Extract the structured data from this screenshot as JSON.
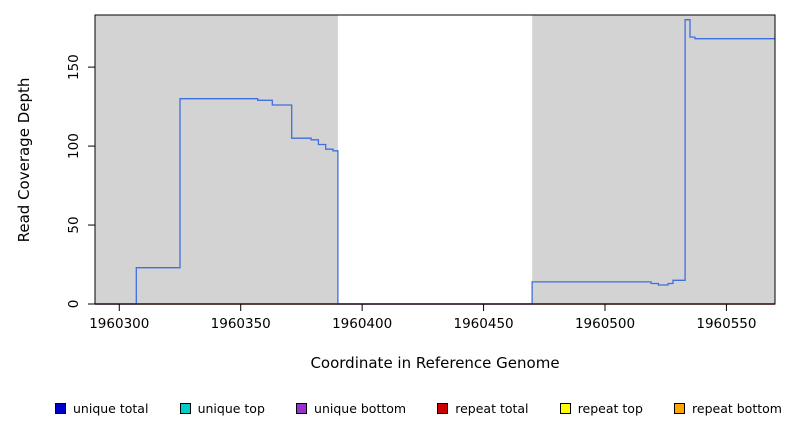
{
  "chart_data": {
    "type": "line",
    "step": true,
    "title": "",
    "xlabel": "Coordinate in Reference Genome",
    "ylabel": "Read Coverage Depth",
    "xlim": [
      1960290,
      1960570
    ],
    "ylim": [
      0,
      183
    ],
    "x_ticks": [
      1960300,
      1960350,
      1960400,
      1960450,
      1960500,
      1960550
    ],
    "y_ticks": [
      0,
      50,
      100,
      150
    ],
    "grid": false,
    "plot_bg": "#FFFFFF",
    "plot_bg_shaded": "#D3D3D3",
    "border_color": "#000000",
    "shaded_regions": [
      [
        1960290,
        1960390
      ],
      [
        1960470,
        1960570
      ]
    ],
    "series": [
      {
        "name": "repeat top",
        "color": "#FFFF00",
        "points": [
          [
            1960290,
            0
          ]
        ]
      },
      {
        "name": "repeat bottom",
        "color": "#FFA500",
        "points": [
          [
            1960290,
            0
          ]
        ]
      },
      {
        "name": "unique top",
        "color": "#00CCCC",
        "points": [
          [
            1960290,
            0
          ]
        ]
      },
      {
        "name": "unique bottom",
        "color": "#9932CC",
        "points": [
          [
            1960290,
            0
          ]
        ]
      },
      {
        "name": "repeat total",
        "color": "#CC0000",
        "points": [
          [
            1960290,
            0
          ]
        ]
      },
      {
        "name": "unique total",
        "color": "#3E6FE1",
        "points": [
          [
            1960290,
            0
          ],
          [
            1960307,
            23
          ],
          [
            1960325,
            130
          ],
          [
            1960357,
            129
          ],
          [
            1960363,
            126
          ],
          [
            1960371,
            105
          ],
          [
            1960379,
            104
          ],
          [
            1960382,
            101
          ],
          [
            1960385,
            98
          ],
          [
            1960388,
            97
          ],
          [
            1960390,
            0
          ],
          [
            1960470,
            14
          ],
          [
            1960519,
            13
          ],
          [
            1960522,
            12
          ],
          [
            1960526,
            13
          ],
          [
            1960528,
            15
          ],
          [
            1960533,
            180
          ],
          [
            1960535,
            169
          ],
          [
            1960537,
            168
          ]
        ]
      }
    ],
    "legend_position": "bottom"
  },
  "legend": {
    "items": [
      {
        "label": "unique total",
        "color": "#0000CC"
      },
      {
        "label": "unique top",
        "color": "#00CCCC"
      },
      {
        "label": "unique bottom",
        "color": "#9932CC"
      },
      {
        "label": "repeat total",
        "color": "#CC0000"
      },
      {
        "label": "repeat top",
        "color": "#FFFF00"
      },
      {
        "label": "repeat bottom",
        "color": "#FFA500"
      }
    ]
  }
}
